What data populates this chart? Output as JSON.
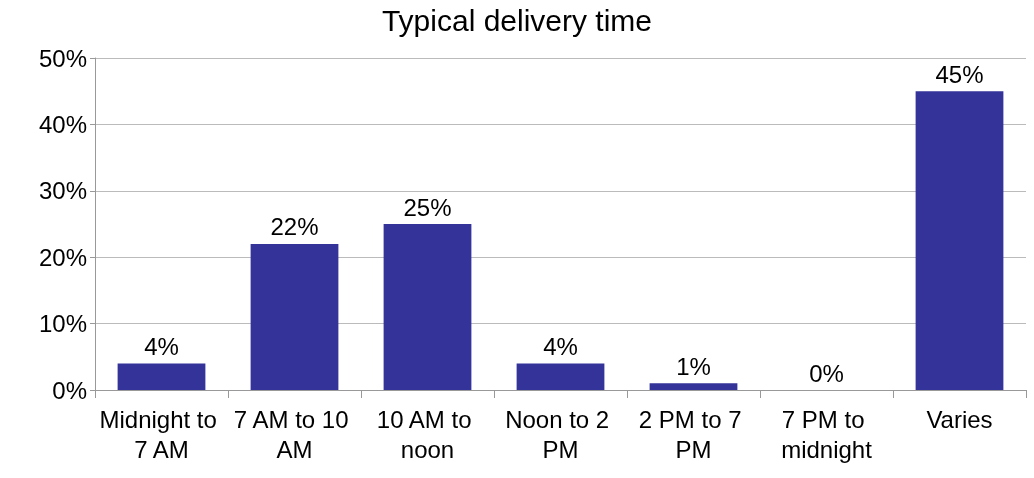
{
  "chart_data": {
    "type": "bar",
    "title": "Typical delivery time",
    "categories": [
      "Midnight to 7 AM",
      "7 AM to 10 AM",
      "10 AM to noon",
      "Noon to 2 PM",
      "2 PM to 7 PM",
      "7 PM to midnight",
      "Varies"
    ],
    "values": [
      4,
      22,
      25,
      4,
      1,
      0,
      45
    ],
    "color": "#333399",
    "ylim": [
      0,
      50
    ],
    "yticks": [
      {
        "value": 0,
        "label": "0%"
      },
      {
        "value": 10,
        "label": "10%"
      },
      {
        "value": 20,
        "label": "20%"
      },
      {
        "value": 30,
        "label": "30%"
      },
      {
        "value": 40,
        "label": "40%"
      },
      {
        "value": 50,
        "label": "50%"
      }
    ],
    "value_labels": [
      "4%",
      "22%",
      "25%",
      "4%",
      "1%",
      "0%",
      "45%"
    ],
    "grid": "y"
  }
}
